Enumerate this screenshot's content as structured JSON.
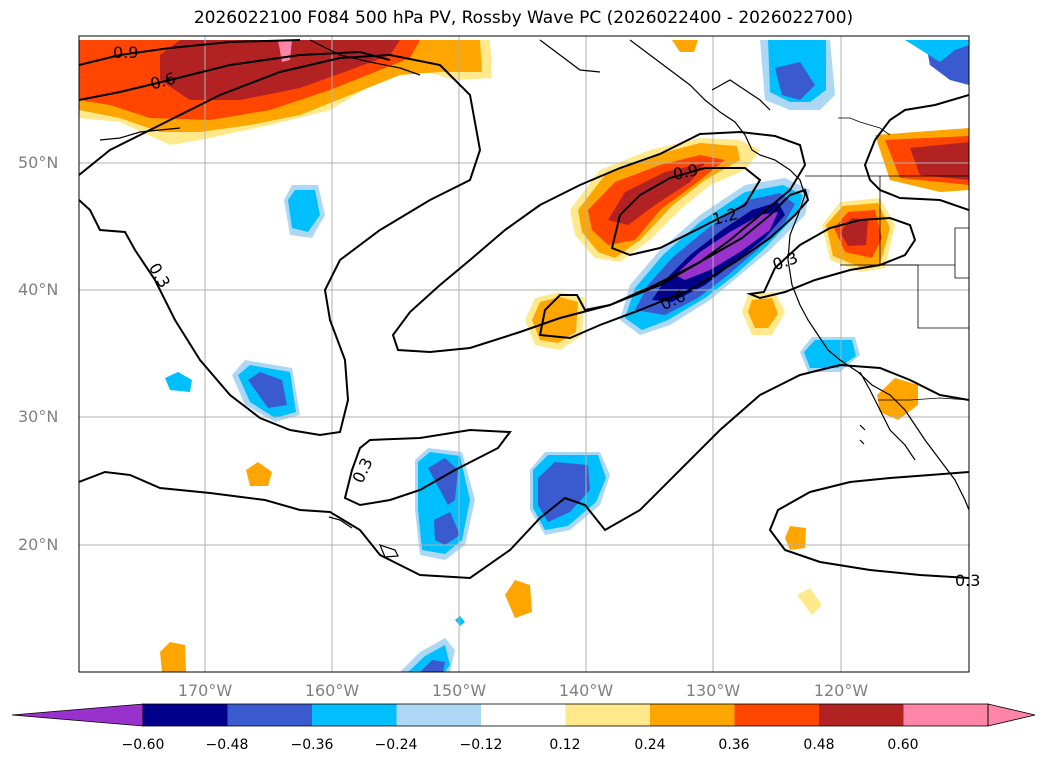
{
  "title": "2026022100 F084 500 hPa PV, Rossby Wave PC (2026022400 - 2026022700)",
  "lat_labels": [
    "50°N",
    "40°N",
    "30°N",
    "20°N"
  ],
  "lon_labels": [
    "170°W",
    "160°W",
    "150°W",
    "140°W",
    "130°W",
    "120°W"
  ],
  "contour_labels": [
    "0.9",
    "0.6",
    "0.9",
    "1.2",
    "0.3",
    "0.6",
    "0.3",
    "0.3",
    "0.3"
  ],
  "colorbar": {
    "ticks": [
      "−0.60",
      "−0.48",
      "−0.36",
      "−0.24",
      "−0.12",
      "0.12",
      "0.24",
      "0.36",
      "0.48",
      "0.60"
    ],
    "colors": [
      "#9932cc",
      "#00008b",
      "#3a5bd0",
      "#00bfff",
      "#add8f5",
      "#ffffff",
      "#ffe98a",
      "#ffa500",
      "#ff4500",
      "#b22222",
      "#ff85a8",
      "#ff85a8"
    ]
  },
  "palette": {
    "purple": "#9932cc",
    "navy": "#00008b",
    "blue": "#3a5bd0",
    "sky": "#00bfff",
    "lightblue": "#add8f5",
    "yellow": "#ffe98a",
    "orange": "#ffa500",
    "redorange": "#ff4500",
    "darkred": "#b22222",
    "pink": "#ff85a8"
  }
}
